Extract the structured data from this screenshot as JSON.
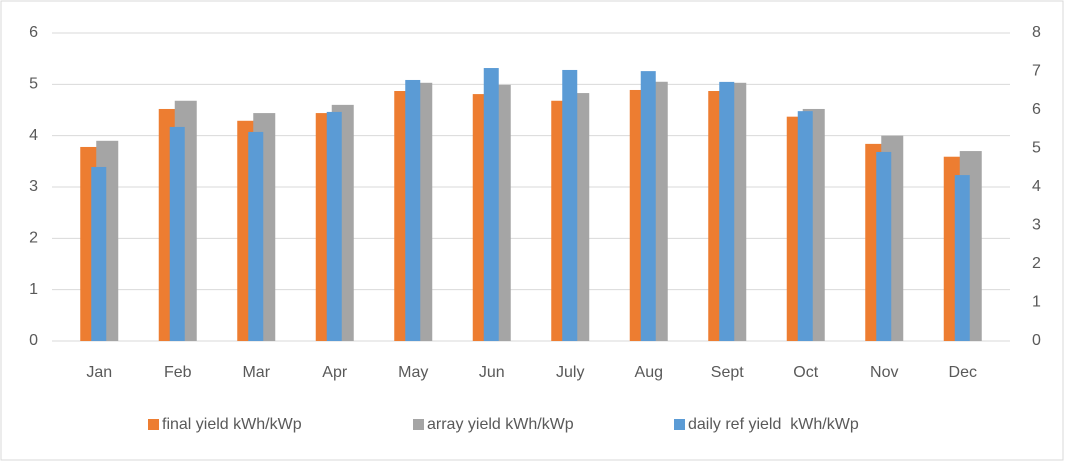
{
  "chart_data": {
    "type": "bar",
    "categories": [
      "Jan",
      "Feb",
      "Mar",
      "Apr",
      "May",
      "Jun",
      "July",
      "Aug",
      "Sept",
      "Oct",
      "Nov",
      "Dec"
    ],
    "series": [
      {
        "name": "final yield kWh/kWp",
        "color": "#ed7d31",
        "values": [
          3.78,
          4.52,
          4.29,
          4.44,
          4.87,
          4.81,
          4.68,
          4.89,
          4.87,
          4.37,
          3.84,
          3.59
        ]
      },
      {
        "name": "array yield kWh/kWp",
        "color": "#a5a5a5",
        "values": [
          3.9,
          4.68,
          4.44,
          4.6,
          5.03,
          4.99,
          4.83,
          5.05,
          5.03,
          4.52,
          4.0,
          3.7
        ]
      },
      {
        "name": "daily ref yield  kWh/kWp",
        "color": "#5b9bd5",
        "axis": "y2",
        "values": [
          4.52,
          5.56,
          5.43,
          5.95,
          6.78,
          7.09,
          7.04,
          7.01,
          6.73,
          5.97,
          4.91,
          4.31
        ]
      }
    ],
    "ylim": [
      0,
      6
    ],
    "yticks": [
      0,
      1,
      2,
      3,
      4,
      5,
      6
    ],
    "y2lim": [
      0,
      8
    ],
    "y2ticks": [
      0,
      1,
      2,
      3,
      4,
      5,
      6,
      7,
      8
    ],
    "grid": true,
    "legend": "bottom"
  }
}
